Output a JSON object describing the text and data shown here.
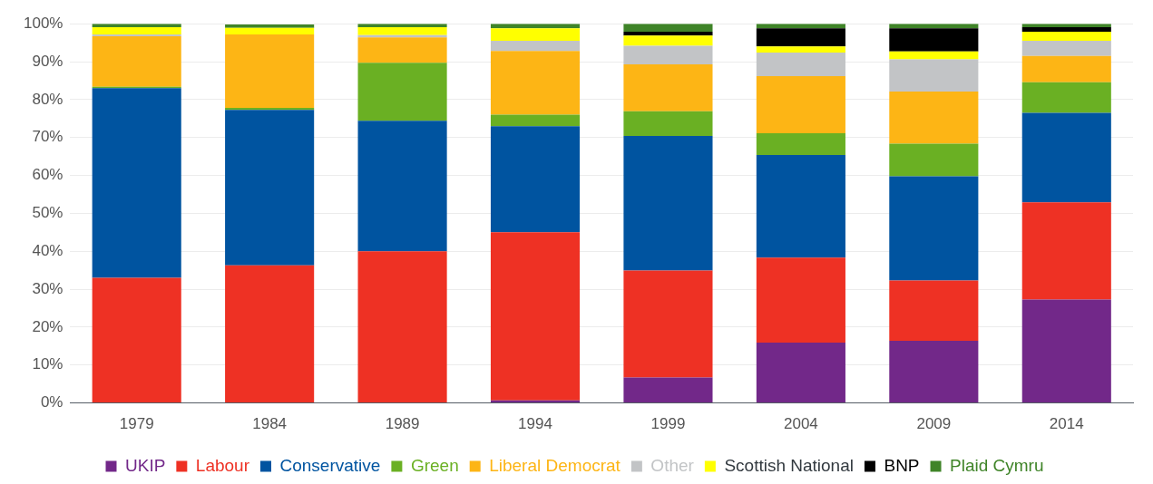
{
  "chart_data": {
    "type": "bar",
    "stacked": true,
    "categories": [
      "1979",
      "1984",
      "1989",
      "1994",
      "1999",
      "2004",
      "2009",
      "2014"
    ],
    "ylim": [
      0,
      100
    ],
    "yticks": [
      {
        "value": 0,
        "label": "0%"
      },
      {
        "value": 10,
        "label": "10%"
      },
      {
        "value": 20,
        "label": "20%"
      },
      {
        "value": 30,
        "label": "30%"
      },
      {
        "value": 40,
        "label": "40%"
      },
      {
        "value": 50,
        "label": "50%"
      },
      {
        "value": 60,
        "label": "60%"
      },
      {
        "value": 70,
        "label": "70%"
      },
      {
        "value": 80,
        "label": "80%"
      },
      {
        "value": 90,
        "label": "90%"
      },
      {
        "value": 100,
        "label": "100%"
      }
    ],
    "grid": "y",
    "legend": "bottom",
    "series": [
      {
        "name": "UKIP",
        "color": "#722889",
        "values": [
          0,
          0,
          0,
          0.7,
          6.7,
          15.9,
          16.4,
          27.3
        ]
      },
      {
        "name": "Labour",
        "color": "#ee3124",
        "values": [
          33.0,
          36.3,
          40.0,
          44.3,
          28.2,
          22.4,
          15.9,
          25.6
        ]
      },
      {
        "name": "Conservative",
        "color": "#0054a0",
        "values": [
          50.0,
          41.0,
          34.4,
          28.0,
          35.5,
          27.1,
          27.5,
          23.6
        ]
      },
      {
        "name": "Green",
        "color": "#6ab023",
        "values": [
          0.4,
          0.5,
          15.3,
          3.0,
          6.5,
          5.7,
          8.6,
          8.1
        ]
      },
      {
        "name": "Liberal Democrat",
        "color": "#fdb515",
        "values": [
          13.3,
          19.4,
          6.7,
          16.8,
          12.4,
          15.1,
          13.7,
          6.9
        ]
      },
      {
        "name": "Other",
        "color": "#c2c4c6",
        "values": [
          0.5,
          null,
          0.6,
          2.7,
          4.9,
          6.2,
          8.5,
          4.0
        ]
      },
      {
        "name": "Scottish National",
        "color": "#ffff00",
        "values": [
          1.9,
          1.7,
          2.1,
          3.3,
          2.7,
          1.6,
          2.1,
          2.4
        ]
      },
      {
        "name": "BNP",
        "color": "#000000",
        "values": [
          0,
          0,
          0,
          0,
          1.0,
          4.8,
          6.1,
          1.2
        ]
      },
      {
        "name": "Plaid Cymru",
        "color": "#3f8428",
        "values": [
          0.9,
          0.9,
          0.9,
          1.2,
          2.1,
          1.2,
          1.2,
          0.9
        ]
      }
    ]
  }
}
